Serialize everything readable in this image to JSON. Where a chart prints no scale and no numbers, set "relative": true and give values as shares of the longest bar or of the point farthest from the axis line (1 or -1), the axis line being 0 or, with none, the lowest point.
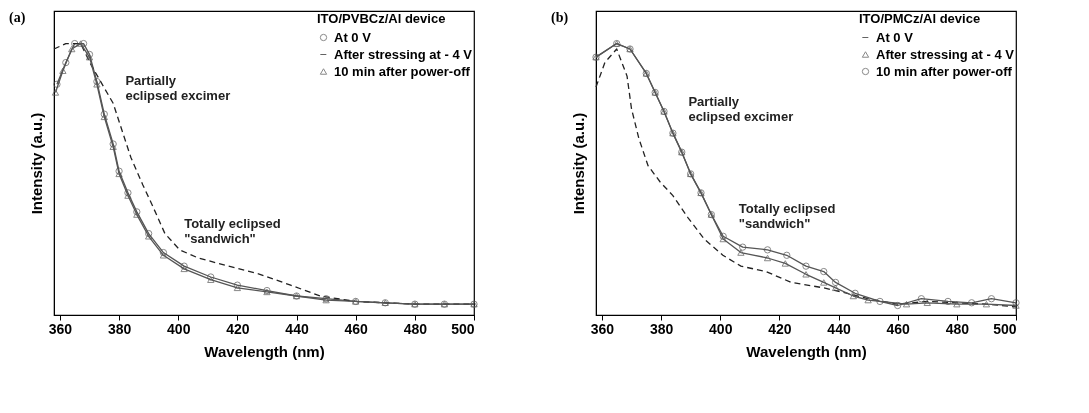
{
  "chart_data": [
    {
      "type": "line",
      "title": "(a)",
      "xlabel": "Wavelength (nm)",
      "ylabel": "Intensity (a.u.)",
      "legend_title": "ITO/PVBCz/Al device",
      "legend": "top right",
      "relative": true,
      "tick_labels": "x",
      "grid": false,
      "xlim": [
        358,
        500
      ],
      "xticks": [
        360,
        380,
        400,
        420,
        440,
        460,
        480,
        500
      ],
      "annotations": [
        "Partially\neclipsed excimer",
        "Totally eclipsed\n\"sandwich\""
      ],
      "series": [
        {
          "name": "At 0 V",
          "color": "#555555",
          "marker": "circle",
          "line_style": "solid",
          "x": [
            359,
            362,
            365,
            368,
            370,
            372.5,
            375,
            378,
            380,
            383,
            386,
            390,
            395,
            402,
            411,
            420,
            430,
            440,
            450,
            460,
            470,
            480,
            490,
            500
          ],
          "values": [
            0.85,
            0.93,
            1.0,
            1.0,
            0.96,
            0.86,
            0.74,
            0.63,
            0.53,
            0.45,
            0.38,
            0.3,
            0.23,
            0.18,
            0.14,
            0.11,
            0.09,
            0.07,
            0.06,
            0.05,
            0.045,
            0.04,
            0.04,
            0.04
          ]
        },
        {
          "name": "After stressing at - 4 V",
          "color": "#222222",
          "marker": "none",
          "line_style": "dashed",
          "x": [
            358,
            362,
            367,
            370.6,
            378,
            381,
            384,
            388,
            391,
            395.5,
            400.5,
            406.8,
            417,
            427.6,
            438,
            448,
            460,
            470,
            480,
            490,
            500
          ],
          "values": [
            0.98,
            1.0,
            1.0,
            0.92,
            0.78,
            0.68,
            0.58,
            0.48,
            0.41,
            0.3,
            0.24,
            0.21,
            0.18,
            0.15,
            0.11,
            0.07,
            0.05,
            0.045,
            0.04,
            0.04,
            0.04
          ]
        },
        {
          "name": "10 min after power-off",
          "color": "#555555",
          "marker": "triangle",
          "line_style": "solid",
          "x": [
            358.5,
            361,
            364,
            367,
            370,
            372.5,
            375,
            378,
            380,
            383,
            386,
            390,
            395,
            402,
            411,
            420,
            430,
            440,
            450,
            460,
            470,
            480,
            490,
            500
          ],
          "values": [
            0.82,
            0.9,
            0.98,
            1.0,
            0.95,
            0.85,
            0.73,
            0.62,
            0.52,
            0.44,
            0.37,
            0.29,
            0.22,
            0.17,
            0.13,
            0.1,
            0.085,
            0.07,
            0.055,
            0.05,
            0.045,
            0.04,
            0.04,
            0.04
          ]
        }
      ]
    },
    {
      "type": "line",
      "title": "(b)",
      "xlabel": "Wavelength (nm)",
      "ylabel": "Intensity (a.u.)",
      "legend_title": "ITO/PMCz/Al device",
      "legend": "top right",
      "relative": true,
      "tick_labels": "x",
      "grid": false,
      "xlim": [
        358,
        500
      ],
      "xticks": [
        360,
        380,
        400,
        420,
        440,
        460,
        480,
        500
      ],
      "annotations": [
        "Partially\neclipsed excimer",
        "Totally eclipsed\n\"sandwich\""
      ],
      "series": [
        {
          "name": "At 0 V",
          "color": "#222222",
          "marker": "none",
          "line_style": "dashed",
          "x": [
            358,
            361,
            365,
            368.5,
            370,
            372.5,
            375.6,
            379.7,
            384,
            389,
            394.6,
            400.9,
            407,
            415.5,
            424,
            435,
            443,
            450,
            460,
            470,
            480,
            490,
            500
          ],
          "values": [
            0.84,
            0.93,
            0.98,
            0.88,
            0.76,
            0.65,
            0.55,
            0.49,
            0.44,
            0.36,
            0.28,
            0.22,
            0.18,
            0.16,
            0.12,
            0.1,
            0.08,
            0.06,
            0.04,
            0.05,
            0.045,
            0.04,
            0.03
          ]
        },
        {
          "name": "After stressing at - 4 V",
          "color": "#555555",
          "marker": "triangle",
          "line_style": "solid",
          "x": [
            358,
            365,
            369.5,
            375,
            378,
            381,
            384,
            387,
            390,
            393.5,
            397,
            401,
            407,
            416,
            422,
            429,
            435,
            439,
            445,
            450,
            463,
            470,
            480,
            490,
            500
          ],
          "values": [
            0.95,
            1.0,
            0.98,
            0.89,
            0.82,
            0.75,
            0.67,
            0.6,
            0.52,
            0.45,
            0.37,
            0.28,
            0.23,
            0.21,
            0.19,
            0.15,
            0.12,
            0.1,
            0.07,
            0.055,
            0.04,
            0.045,
            0.04,
            0.04,
            0.035
          ]
        },
        {
          "name": "10 min after power-off",
          "color": "#555555",
          "marker": "circle",
          "line_style": "solid",
          "x": [
            358,
            365,
            369.5,
            375,
            378,
            381,
            384,
            387,
            390,
            393.5,
            397,
            401,
            407.6,
            416,
            422.5,
            429,
            435,
            439,
            445.6,
            454,
            460,
            468,
            477,
            485,
            491.7,
            500
          ],
          "values": [
            0.95,
            1.0,
            0.98,
            0.89,
            0.82,
            0.75,
            0.67,
            0.6,
            0.52,
            0.45,
            0.37,
            0.29,
            0.25,
            0.24,
            0.22,
            0.18,
            0.16,
            0.12,
            0.08,
            0.05,
            0.035,
            0.06,
            0.05,
            0.045,
            0.06,
            0.045
          ]
        }
      ]
    }
  ]
}
